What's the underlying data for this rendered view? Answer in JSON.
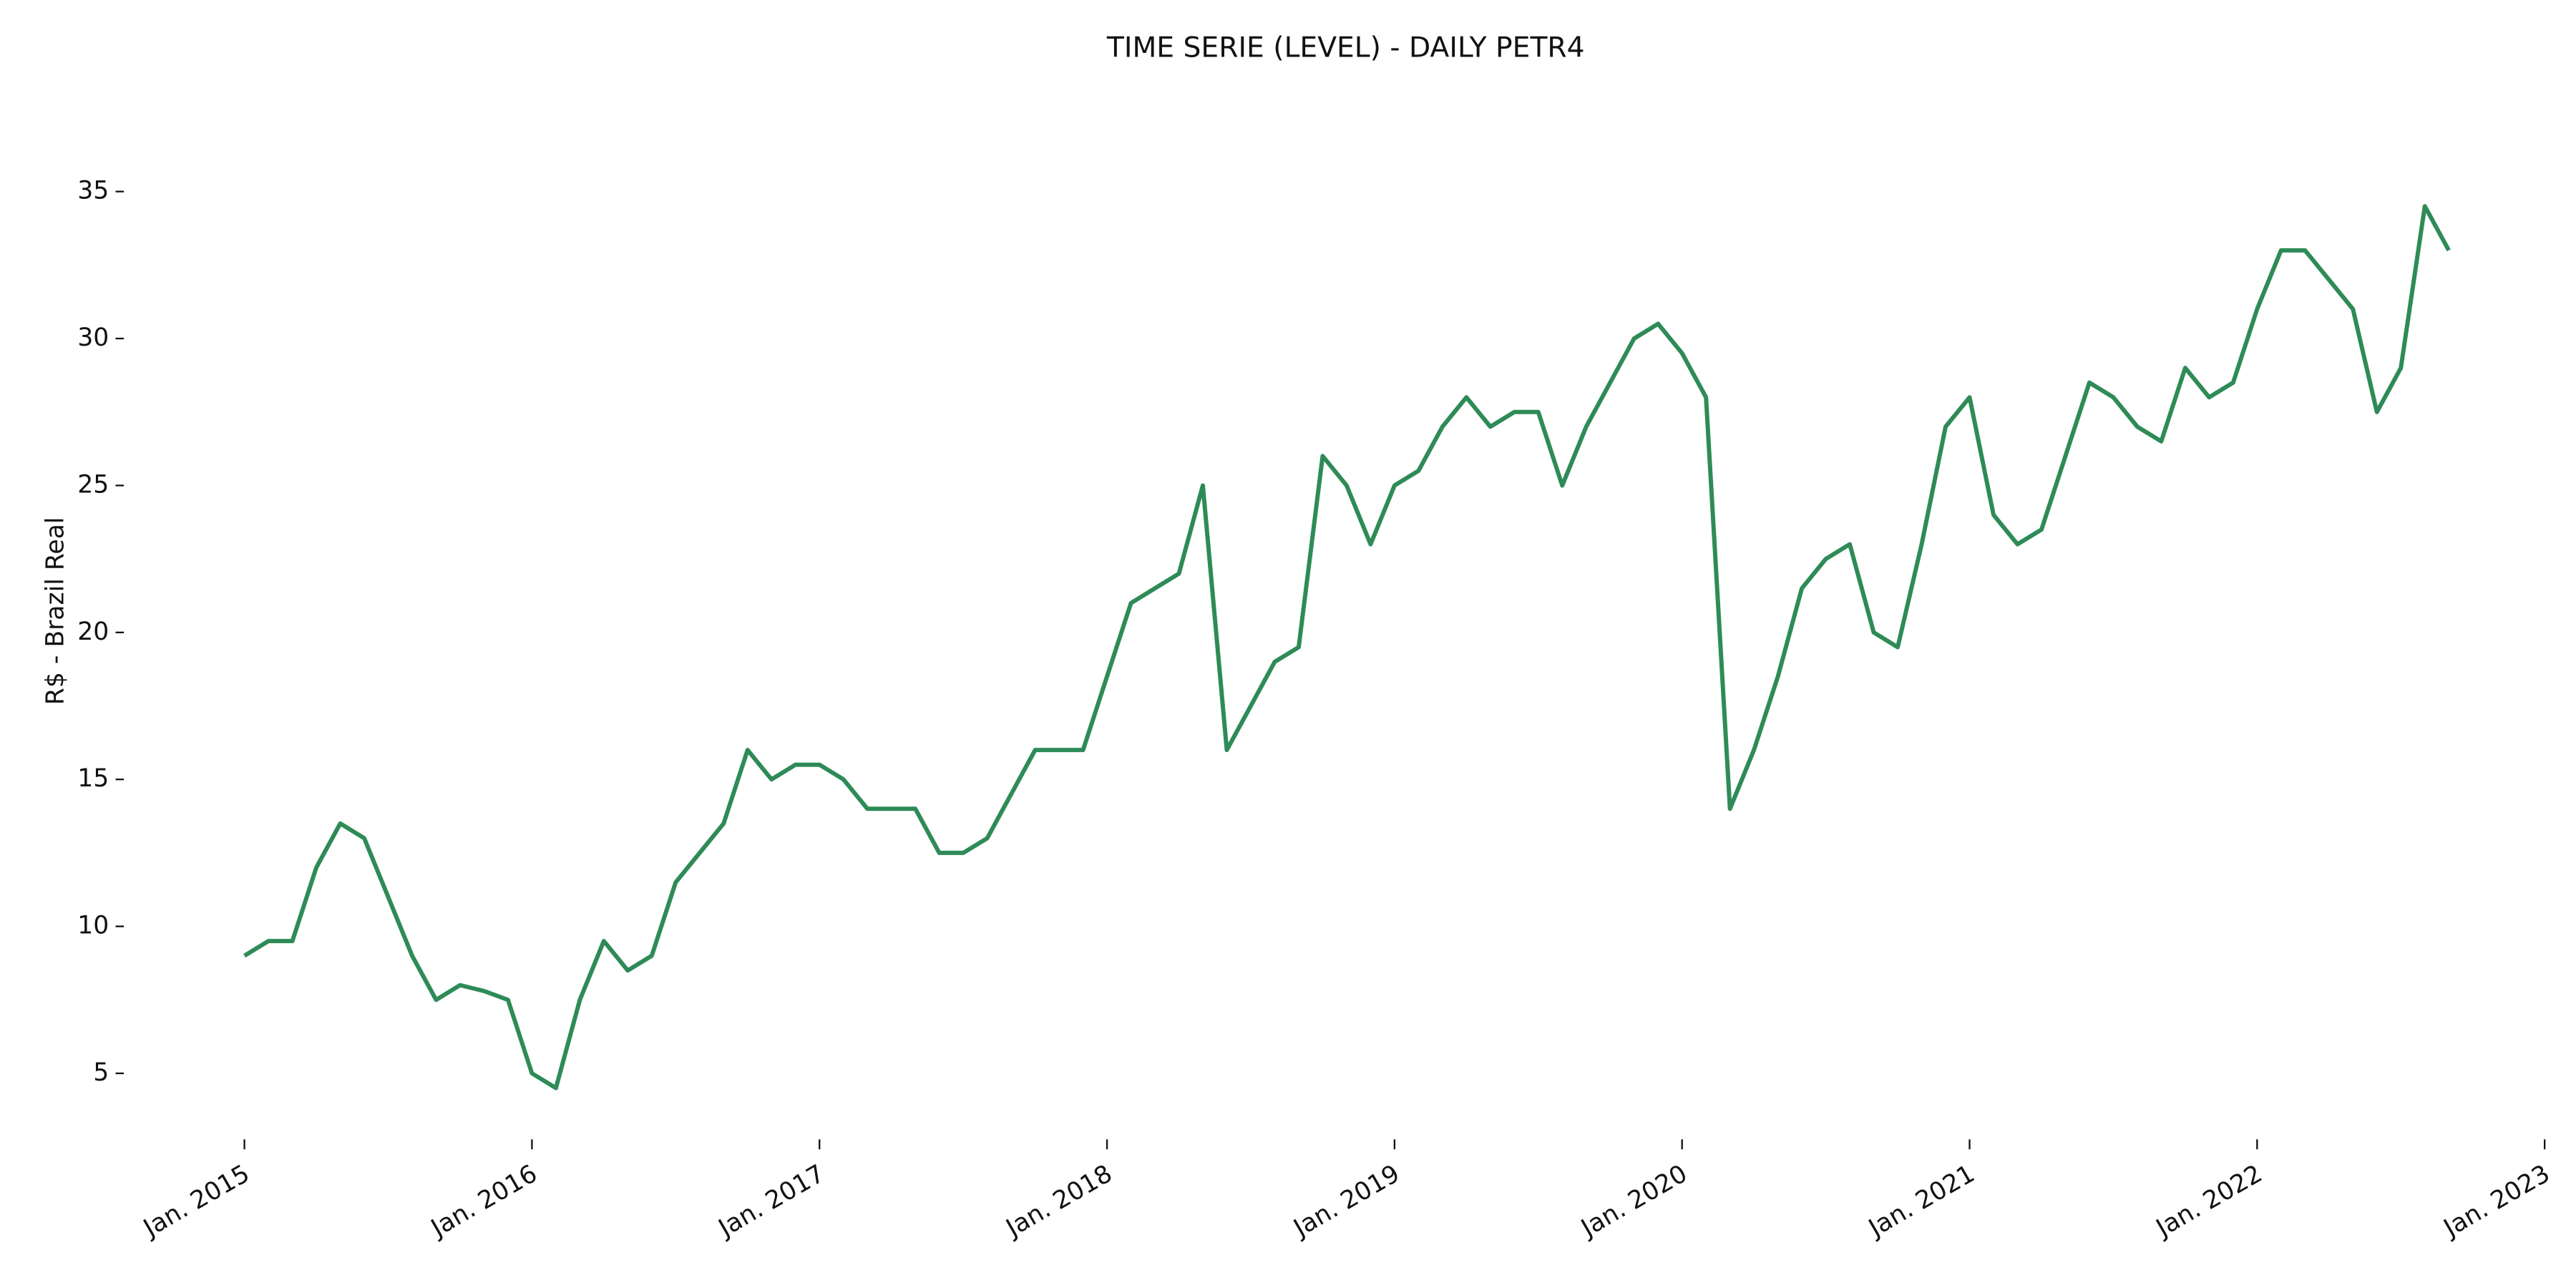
{
  "chart_data": {
    "type": "line",
    "title": "TIME SERIE (LEVEL) - DAILY PETR4",
    "y_label": "R$ - Brazil Real",
    "x": [
      "2015-01",
      "2015-02",
      "2015-03",
      "2015-04",
      "2015-05",
      "2015-06",
      "2015-07",
      "2015-08",
      "2015-09",
      "2015-10",
      "2015-11",
      "2015-12",
      "2016-01",
      "2016-02",
      "2016-03",
      "2016-04",
      "2016-05",
      "2016-06",
      "2016-07",
      "2016-08",
      "2016-09",
      "2016-10",
      "2016-11",
      "2016-12",
      "2017-01",
      "2017-02",
      "2017-03",
      "2017-04",
      "2017-05",
      "2017-06",
      "2017-07",
      "2017-08",
      "2017-09",
      "2017-10",
      "2017-11",
      "2017-12",
      "2018-01",
      "2018-02",
      "2018-03",
      "2018-04",
      "2018-05",
      "2018-06",
      "2018-07",
      "2018-08",
      "2018-09",
      "2018-10",
      "2018-11",
      "2018-12",
      "2019-01",
      "2019-02",
      "2019-03",
      "2019-04",
      "2019-05",
      "2019-06",
      "2019-07",
      "2019-08",
      "2019-09",
      "2019-10",
      "2019-11",
      "2019-12",
      "2020-01",
      "2020-02",
      "2020-03",
      "2020-04",
      "2020-05",
      "2020-06",
      "2020-07",
      "2020-08",
      "2020-09",
      "2020-10",
      "2020-11",
      "2020-12",
      "2021-01",
      "2021-02",
      "2021-03",
      "2021-04",
      "2021-05",
      "2021-06",
      "2021-07",
      "2021-08",
      "2021-09",
      "2021-10",
      "2021-11",
      "2021-12",
      "2022-01",
      "2022-02",
      "2022-03",
      "2022-04",
      "2022-05",
      "2022-06",
      "2022-07",
      "2022-08",
      "2022-09"
    ],
    "series": [
      {
        "name": "PETR4",
        "color": "#2e8b57",
        "values": [
          9,
          9.5,
          9.5,
          12,
          13.5,
          13,
          11,
          9,
          7.5,
          8,
          7.8,
          7.5,
          5,
          4.5,
          7.5,
          9.5,
          8.5,
          9,
          11.5,
          12.5,
          13.5,
          16,
          15,
          15.5,
          15.5,
          15,
          14,
          14,
          14,
          12.5,
          12.5,
          13,
          14.5,
          16,
          16,
          16,
          18.5,
          21,
          21.5,
          22,
          25,
          16,
          17.5,
          19,
          19.5,
          26,
          25,
          23,
          25,
          25.5,
          27,
          28,
          27,
          27.5,
          27.5,
          25,
          27,
          28.5,
          30,
          30.5,
          29.5,
          28,
          14,
          16,
          18.5,
          21.5,
          22.5,
          23,
          20,
          19.5,
          23,
          27,
          28,
          24,
          23,
          23.5,
          26,
          28.5,
          28,
          27,
          26.5,
          29,
          28,
          28.5,
          31,
          33,
          33,
          32,
          31,
          27.5,
          29,
          34.5,
          33
        ]
      }
    ],
    "xlim": [
      "2014-11",
      "2023-01"
    ],
    "xticks": [
      {
        "value": "2015-01",
        "label": "Jan. 2015"
      },
      {
        "value": "2016-01",
        "label": "Jan. 2016"
      },
      {
        "value": "2017-01",
        "label": "Jan. 2017"
      },
      {
        "value": "2018-01",
        "label": "Jan. 2018"
      },
      {
        "value": "2019-01",
        "label": "Jan. 2019"
      },
      {
        "value": "2020-01",
        "label": "Jan. 2020"
      },
      {
        "value": "2021-01",
        "label": "Jan. 2021"
      },
      {
        "value": "2022-01",
        "label": "Jan. 2022"
      },
      {
        "value": "2023-01",
        "label": "Jan. 2023"
      }
    ],
    "ylim": [
      3,
      38
    ],
    "yticks": [
      5,
      10,
      15,
      20,
      25,
      30,
      35
    ],
    "grid": false
  }
}
